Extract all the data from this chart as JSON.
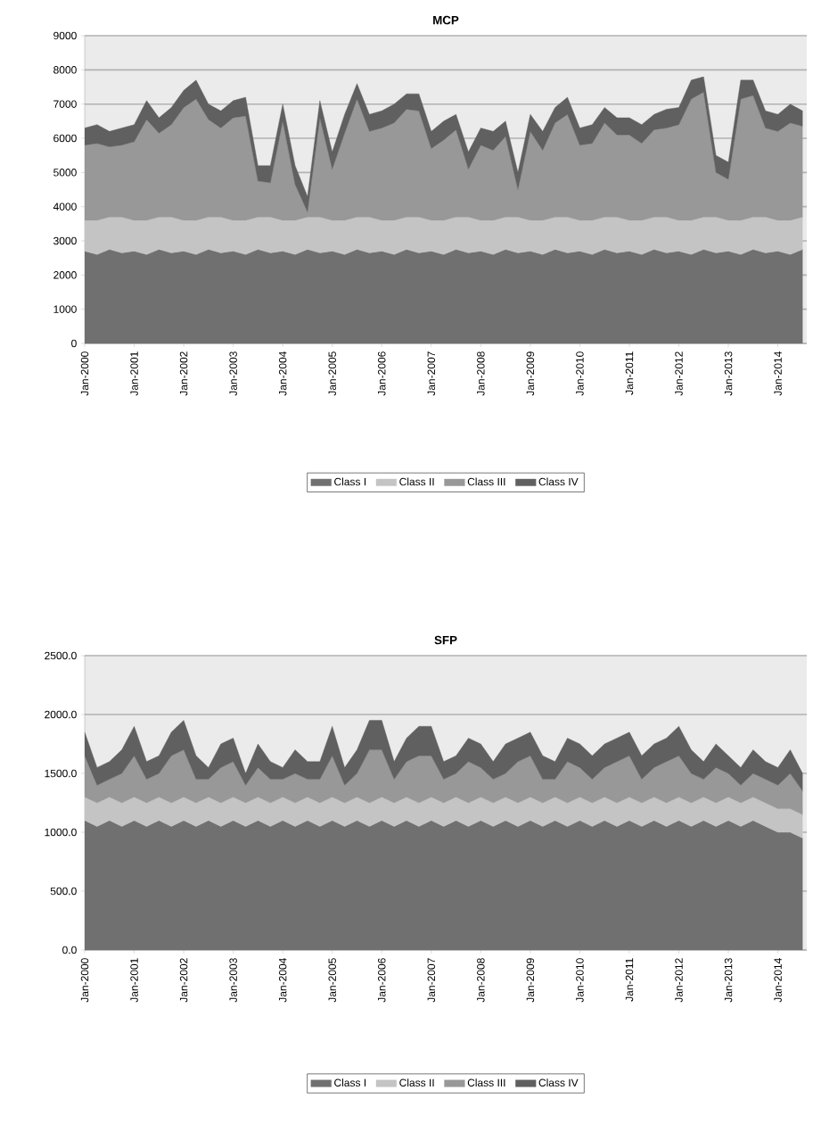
{
  "chart_data": [
    {
      "type": "area",
      "title": "MCP",
      "stacked": true,
      "grid": "y",
      "legend": "bottom",
      "marker": "none",
      "x": [
        "2000-01",
        "2000-04",
        "2000-07",
        "2000-10",
        "2001-01",
        "2001-04",
        "2001-07",
        "2001-10",
        "2002-01",
        "2002-04",
        "2002-07",
        "2002-10",
        "2003-01",
        "2003-04",
        "2003-07",
        "2003-10",
        "2004-01",
        "2004-04",
        "2004-07",
        "2004-10",
        "2005-01",
        "2005-04",
        "2005-07",
        "2005-10",
        "2006-01",
        "2006-04",
        "2006-07",
        "2006-10",
        "2007-01",
        "2007-04",
        "2007-07",
        "2007-10",
        "2008-01",
        "2008-04",
        "2008-07",
        "2008-10",
        "2009-01",
        "2009-04",
        "2009-07",
        "2009-10",
        "2010-01",
        "2010-04",
        "2010-07",
        "2010-10",
        "2011-01",
        "2011-04",
        "2011-07",
        "2011-10",
        "2012-01",
        "2012-04",
        "2012-07",
        "2012-10",
        "2013-01",
        "2013-04",
        "2013-07",
        "2013-10",
        "2014-01",
        "2014-04",
        "2014-07"
      ],
      "xlim": [
        "2000-01",
        "2014-08"
      ],
      "xticks": [
        {
          "value": "2000-01",
          "label": "Jan-2000"
        },
        {
          "value": "2001-01",
          "label": "Jan-2001"
        },
        {
          "value": "2002-01",
          "label": "Jan-2002"
        },
        {
          "value": "2003-01",
          "label": "Jan-2003"
        },
        {
          "value": "2004-01",
          "label": "Jan-2004"
        },
        {
          "value": "2005-01",
          "label": "Jan-2005"
        },
        {
          "value": "2006-01",
          "label": "Jan-2006"
        },
        {
          "value": "2007-01",
          "label": "Jan-2007"
        },
        {
          "value": "2008-01",
          "label": "Jan-2008"
        },
        {
          "value": "2009-01",
          "label": "Jan-2009"
        },
        {
          "value": "2010-01",
          "label": "Jan-2010"
        },
        {
          "value": "2011-01",
          "label": "Jan-2011"
        },
        {
          "value": "2012-01",
          "label": "Jan-2012"
        },
        {
          "value": "2013-01",
          "label": "Jan-2013"
        },
        {
          "value": "2014-01",
          "label": "Jan-2014"
        }
      ],
      "ylim": [
        0,
        9000
      ],
      "yticks": [
        0,
        1000,
        2000,
        3000,
        4000,
        5000,
        6000,
        7000,
        8000,
        9000
      ],
      "series": [
        {
          "name": "Class I",
          "color": "#707070",
          "values": [
            2700,
            2600,
            2750,
            2650,
            2700,
            2600,
            2750,
            2650,
            2700,
            2600,
            2750,
            2650,
            2700,
            2600,
            2750,
            2650,
            2700,
            2600,
            2750,
            2650,
            2700,
            2600,
            2750,
            2650,
            2700,
            2600,
            2750,
            2650,
            2700,
            2600,
            2750,
            2650,
            2700,
            2600,
            2750,
            2650,
            2700,
            2600,
            2750,
            2650,
            2700,
            2600,
            2750,
            2650,
            2700,
            2600,
            2750,
            2650,
            2700,
            2600,
            2750,
            2650,
            2700,
            2600,
            2750,
            2650,
            2700,
            2600,
            2750
          ]
        },
        {
          "name": "Class II",
          "color": "#c4c4c4",
          "values": [
            900,
            1000,
            950,
            1050,
            900,
            1000,
            950,
            1050,
            900,
            1000,
            950,
            1050,
            900,
            1000,
            950,
            1050,
            900,
            1000,
            950,
            1050,
            900,
            1000,
            950,
            1050,
            900,
            1000,
            950,
            1050,
            900,
            1000,
            950,
            1050,
            900,
            1000,
            950,
            1050,
            900,
            1000,
            950,
            1050,
            900,
            1000,
            950,
            1050,
            900,
            1000,
            950,
            1050,
            900,
            1000,
            950,
            1050,
            900,
            1000,
            950,
            1050,
            900,
            1000,
            950
          ]
        },
        {
          "name": "Class III",
          "color": "#989898",
          "values": [
            2200,
            2250,
            2050,
            2100,
            2300,
            2950,
            2450,
            2700,
            3300,
            3550,
            2850,
            2600,
            3000,
            3050,
            1050,
            1000,
            2900,
            1050,
            150,
            2900,
            1500,
            2550,
            3450,
            2500,
            2700,
            2850,
            3150,
            3100,
            2100,
            2350,
            2550,
            1400,
            2200,
            2050,
            2350,
            800,
            2600,
            2050,
            2750,
            3000,
            2200,
            2250,
            2750,
            2400,
            2500,
            2250,
            2550,
            2600,
            2800,
            3550,
            3650,
            1300,
            1200,
            3550,
            3550,
            2600,
            2600,
            2850,
            2650
          ]
        },
        {
          "name": "Class IV",
          "color": "#606060",
          "values": [
            500,
            550,
            450,
            500,
            500,
            550,
            450,
            500,
            500,
            550,
            450,
            500,
            500,
            550,
            450,
            500,
            500,
            550,
            450,
            500,
            500,
            550,
            450,
            500,
            500,
            550,
            450,
            500,
            500,
            550,
            450,
            500,
            500,
            550,
            450,
            500,
            500,
            550,
            450,
            500,
            500,
            550,
            450,
            500,
            500,
            550,
            450,
            550,
            500,
            550,
            450,
            500,
            500,
            550,
            450,
            500,
            500,
            550,
            450
          ]
        }
      ]
    },
    {
      "type": "area",
      "title": "SFP",
      "stacked": true,
      "grid": "y",
      "legend": "bottom",
      "marker": "none",
      "x": [
        "2000-01",
        "2000-04",
        "2000-07",
        "2000-10",
        "2001-01",
        "2001-04",
        "2001-07",
        "2001-10",
        "2002-01",
        "2002-04",
        "2002-07",
        "2002-10",
        "2003-01",
        "2003-04",
        "2003-07",
        "2003-10",
        "2004-01",
        "2004-04",
        "2004-07",
        "2004-10",
        "2005-01",
        "2005-04",
        "2005-07",
        "2005-10",
        "2006-01",
        "2006-04",
        "2006-07",
        "2006-10",
        "2007-01",
        "2007-04",
        "2007-07",
        "2007-10",
        "2008-01",
        "2008-04",
        "2008-07",
        "2008-10",
        "2009-01",
        "2009-04",
        "2009-07",
        "2009-10",
        "2010-01",
        "2010-04",
        "2010-07",
        "2010-10",
        "2011-01",
        "2011-04",
        "2011-07",
        "2011-10",
        "2012-01",
        "2012-04",
        "2012-07",
        "2012-10",
        "2013-01",
        "2013-04",
        "2013-07",
        "2013-10",
        "2014-01",
        "2014-04",
        "2014-07"
      ],
      "xlim": [
        "2000-01",
        "2014-08"
      ],
      "xticks": [
        {
          "value": "2000-01",
          "label": "Jan-2000"
        },
        {
          "value": "2001-01",
          "label": "Jan-2001"
        },
        {
          "value": "2002-01",
          "label": "Jan-2002"
        },
        {
          "value": "2003-01",
          "label": "Jan-2003"
        },
        {
          "value": "2004-01",
          "label": "Jan-2004"
        },
        {
          "value": "2005-01",
          "label": "Jan-2005"
        },
        {
          "value": "2006-01",
          "label": "Jan-2006"
        },
        {
          "value": "2007-01",
          "label": "Jan-2007"
        },
        {
          "value": "2008-01",
          "label": "Jan-2008"
        },
        {
          "value": "2009-01",
          "label": "Jan-2009"
        },
        {
          "value": "2010-01",
          "label": "Jan-2010"
        },
        {
          "value": "2011-01",
          "label": "Jan-2011"
        },
        {
          "value": "2012-01",
          "label": "Jan-2012"
        },
        {
          "value": "2013-01",
          "label": "Jan-2013"
        },
        {
          "value": "2014-01",
          "label": "Jan-2014"
        }
      ],
      "ylim": [
        0,
        2500
      ],
      "yticks": [
        {
          "value": 0,
          "label": "0.0"
        },
        {
          "value": 500,
          "label": "500.0"
        },
        {
          "value": 1000,
          "label": "1000.0"
        },
        {
          "value": 1500,
          "label": "1500.0"
        },
        {
          "value": 2000,
          "label": "2000.0"
        },
        {
          "value": 2500,
          "label": "2500.0"
        }
      ],
      "series": [
        {
          "name": "Class I",
          "color": "#707070",
          "values": [
            1100,
            1050,
            1100,
            1050,
            1100,
            1050,
            1100,
            1050,
            1100,
            1050,
            1100,
            1050,
            1100,
            1050,
            1100,
            1050,
            1100,
            1050,
            1100,
            1050,
            1100,
            1050,
            1100,
            1050,
            1100,
            1050,
            1100,
            1050,
            1100,
            1050,
            1100,
            1050,
            1100,
            1050,
            1100,
            1050,
            1100,
            1050,
            1100,
            1050,
            1100,
            1050,
            1100,
            1050,
            1100,
            1050,
            1100,
            1050,
            1100,
            1050,
            1100,
            1050,
            1100,
            1050,
            1100,
            1050,
            1000,
            1000,
            950
          ]
        },
        {
          "name": "Class II",
          "color": "#c4c4c4",
          "values": [
            200,
            200,
            200,
            200,
            200,
            200,
            200,
            200,
            200,
            200,
            200,
            200,
            200,
            200,
            200,
            200,
            200,
            200,
            200,
            200,
            200,
            200,
            200,
            200,
            200,
            200,
            200,
            200,
            200,
            200,
            200,
            200,
            200,
            200,
            200,
            200,
            200,
            200,
            200,
            200,
            200,
            200,
            200,
            200,
            200,
            200,
            200,
            200,
            200,
            200,
            200,
            200,
            200,
            200,
            200,
            200,
            200,
            200,
            200
          ]
        },
        {
          "name": "Class III",
          "color": "#989898",
          "values": [
            350,
            150,
            150,
            250,
            350,
            200,
            200,
            400,
            400,
            200,
            150,
            300,
            300,
            150,
            250,
            200,
            150,
            250,
            150,
            200,
            350,
            150,
            200,
            450,
            400,
            200,
            300,
            400,
            350,
            200,
            200,
            350,
            250,
            200,
            200,
            350,
            350,
            200,
            150,
            350,
            250,
            200,
            250,
            350,
            350,
            200,
            250,
            350,
            350,
            250,
            150,
            300,
            200,
            150,
            200,
            200,
            200,
            300,
            200
          ]
        },
        {
          "name": "Class IV",
          "color": "#606060",
          "values": [
            200,
            150,
            150,
            200,
            250,
            150,
            150,
            200,
            250,
            200,
            100,
            200,
            200,
            100,
            200,
            150,
            100,
            200,
            150,
            150,
            250,
            150,
            200,
            250,
            250,
            150,
            200,
            250,
            250,
            150,
            150,
            200,
            200,
            150,
            250,
            200,
            200,
            200,
            150,
            200,
            200,
            200,
            200,
            200,
            200,
            200,
            200,
            200,
            250,
            200,
            150,
            200,
            150,
            150,
            200,
            150,
            150,
            200,
            150
          ]
        }
      ]
    }
  ]
}
